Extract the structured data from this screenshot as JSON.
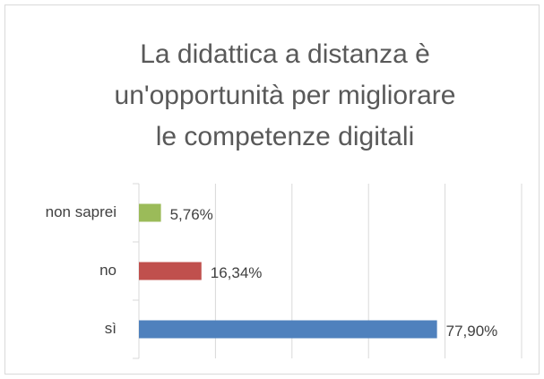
{
  "chart_data": {
    "type": "barh",
    "title": "La didattica a distanza è\nun'opportunità per migliorare\nle competenze digitali",
    "categories": [
      "non saprei",
      "no",
      "sì"
    ],
    "values": [
      5.76,
      16.34,
      77.9
    ],
    "value_labels": [
      "5,76%",
      "16,34%",
      "77,90%"
    ],
    "colors": [
      "#9bbb59",
      "#c0504d",
      "#4f81bd"
    ],
    "xlim": [
      0,
      100
    ],
    "xticks": [
      0,
      20,
      40,
      60,
      80,
      100
    ],
    "grid": true
  }
}
